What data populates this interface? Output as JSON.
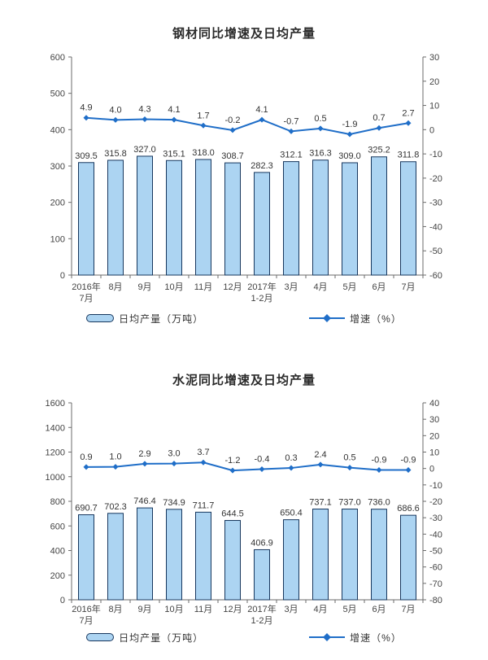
{
  "colors": {
    "bar_fill": "#acd4f2",
    "bar_stroke": "#17375e",
    "line": "#1f6ec8",
    "label_text": "#333333",
    "tick_text": "#444444",
    "axis_line": "#6b6b6b"
  },
  "chart_data": [
    {
      "type": "bar+line",
      "title": "钢材同比增速及日均产量",
      "categories": [
        "2016年\n7月",
        "8月",
        "9月",
        "10月",
        "11月",
        "12月",
        "2017年\n1-2月",
        "3月",
        "4月",
        "5月",
        "6月",
        "7月"
      ],
      "series": [
        {
          "name": "日均产量（万吨）",
          "type": "bar",
          "axis": "left",
          "values": [
            309.5,
            315.8,
            327.0,
            315.1,
            318.0,
            308.7,
            282.3,
            312.1,
            316.3,
            309.0,
            325.2,
            311.8
          ]
        },
        {
          "name": "增速（%）",
          "type": "line",
          "axis": "right",
          "values": [
            4.9,
            4.0,
            4.3,
            4.1,
            1.7,
            -0.2,
            4.1,
            -0.7,
            0.5,
            -1.9,
            0.7,
            2.7
          ]
        }
      ],
      "left_axis": {
        "min": 0,
        "max": 600,
        "step": 100
      },
      "right_axis": {
        "min": -60,
        "max": 30,
        "step": 10
      },
      "xlabel": "",
      "ylabel": "",
      "grid": false,
      "legend_position": "bottom",
      "data_labels": true
    },
    {
      "type": "bar+line",
      "title": "水泥同比增速及日均产量",
      "categories": [
        "2016年\n7月",
        "8月",
        "9月",
        "10月",
        "11月",
        "12月",
        "2017年\n1-2月",
        "3月",
        "4月",
        "5月",
        "6月",
        "7月"
      ],
      "series": [
        {
          "name": "日均产量（万吨）",
          "type": "bar",
          "axis": "left",
          "values": [
            690.7,
            702.3,
            746.4,
            734.9,
            711.7,
            644.5,
            406.9,
            650.4,
            737.1,
            737.0,
            736.0,
            686.6
          ]
        },
        {
          "name": "增速（%）",
          "type": "line",
          "axis": "right",
          "values": [
            0.9,
            1.0,
            2.9,
            3.0,
            3.7,
            -1.2,
            -0.4,
            0.3,
            2.4,
            0.5,
            -0.9,
            -0.9
          ]
        }
      ],
      "left_axis": {
        "min": 0,
        "max": 1600,
        "step": 200
      },
      "right_axis": {
        "min": -80,
        "max": 40,
        "step": 10
      },
      "xlabel": "",
      "ylabel": "",
      "grid": false,
      "legend_position": "bottom",
      "data_labels": true
    }
  ]
}
